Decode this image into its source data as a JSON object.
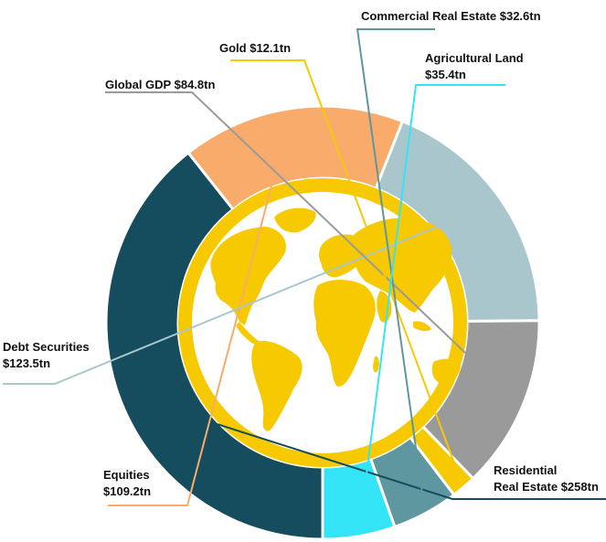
{
  "chart_data": {
    "type": "pie",
    "variant": "donut",
    "title": "",
    "center_icon": "globe-icon",
    "series": [
      {
        "label": "Residential Real Estate",
        "label_lines": [
          "Residential",
          "Real Estate $258tn"
        ],
        "value": 258,
        "display": "$258tn",
        "color": "#164d5e"
      },
      {
        "label": "Equities",
        "label_lines": [
          "Equities",
          "$109.2tn"
        ],
        "value": 109.2,
        "display": "$109.2tn",
        "color": "#f8ab6b"
      },
      {
        "label": "Debt Securities",
        "label_lines": [
          "Debt Securities",
          "$123.5tn"
        ],
        "value": 123.5,
        "display": "$123.5tn",
        "color": "#a9c6cd"
      },
      {
        "label": "Global GDP",
        "label_lines": [
          "Global GDP $84.8tn"
        ],
        "value": 84.8,
        "display": "$84.8tn",
        "color": "#9a9a9a"
      },
      {
        "label": "Gold",
        "label_lines": [
          "Gold $12.1tn"
        ],
        "value": 12.1,
        "display": "$12.1tn",
        "color": "#f6c900"
      },
      {
        "label": "Commercial Real Estate",
        "label_lines": [
          "Commercial Real Estate $32.6tn"
        ],
        "value": 32.6,
        "display": "$32.6tn",
        "color": "#5f97a0"
      },
      {
        "label": "Agricultural Land",
        "label_lines": [
          "Agricultural Land",
          "$35.4tn"
        ],
        "value": 35.4,
        "display": "$35.4tn",
        "color": "#33e4f6"
      }
    ],
    "colors": {
      "globe": "#f6c900",
      "background": "#ffffff",
      "text": "#111111"
    }
  }
}
